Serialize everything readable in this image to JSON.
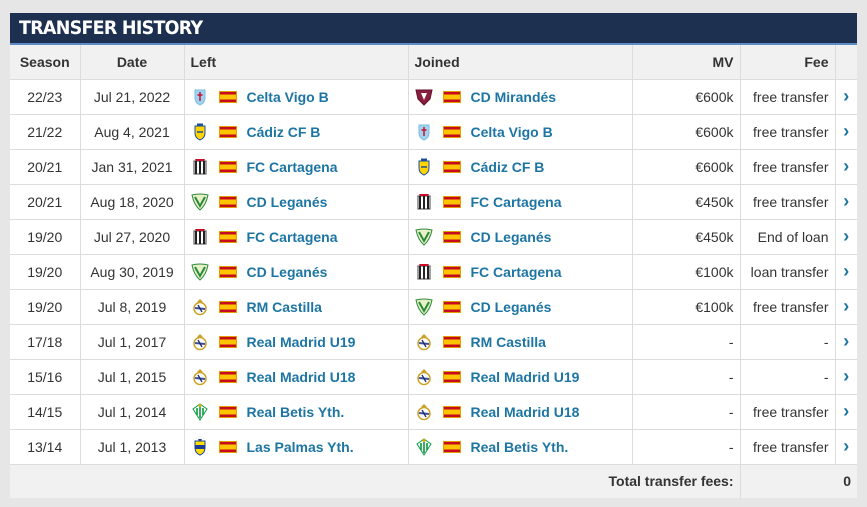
{
  "panel": {
    "title": "Transfer history"
  },
  "headers": {
    "season": "Season",
    "date": "Date",
    "left": "Left",
    "joined": "Joined",
    "mv": "MV",
    "fee": "Fee"
  },
  "rows": [
    {
      "season": "22/23",
      "date": "Jul 21, 2022",
      "left": "Celta Vigo B",
      "left_crest": "celta-crest-icon",
      "joined": "CD Mirandés",
      "joined_crest": "mirandes-crest-icon",
      "mv": "€600k",
      "fee": "free transfer"
    },
    {
      "season": "21/22",
      "date": "Aug 4, 2021",
      "left": "Cádiz CF B",
      "left_crest": "cadiz-crest-icon",
      "joined": "Celta Vigo B",
      "joined_crest": "celta-crest-icon",
      "mv": "€600k",
      "fee": "free transfer"
    },
    {
      "season": "20/21",
      "date": "Jan 31, 2021",
      "left": "FC Cartagena",
      "left_crest": "cartagena-crest-icon",
      "joined": "Cádiz CF B",
      "joined_crest": "cadiz-crest-icon",
      "mv": "€600k",
      "fee": "free transfer"
    },
    {
      "season": "20/21",
      "date": "Aug 18, 2020",
      "left": "CD Leganés",
      "left_crest": "leganes-crest-icon",
      "joined": "FC Cartagena",
      "joined_crest": "cartagena-crest-icon",
      "mv": "€450k",
      "fee": "free transfer"
    },
    {
      "season": "19/20",
      "date": "Jul 27, 2020",
      "left": "FC Cartagena",
      "left_crest": "cartagena-crest-icon",
      "joined": "CD Leganés",
      "joined_crest": "leganes-crest-icon",
      "mv": "€450k",
      "fee": "End of loan"
    },
    {
      "season": "19/20",
      "date": "Aug 30, 2019",
      "left": "CD Leganés",
      "left_crest": "leganes-crest-icon",
      "joined": "FC Cartagena",
      "joined_crest": "cartagena-crest-icon",
      "mv": "€100k",
      "fee": "loan transfer"
    },
    {
      "season": "19/20",
      "date": "Jul 8, 2019",
      "left": "RM Castilla",
      "left_crest": "real-madrid-crest-icon",
      "joined": "CD Leganés",
      "joined_crest": "leganes-crest-icon",
      "mv": "€100k",
      "fee": "free transfer"
    },
    {
      "season": "17/18",
      "date": "Jul 1, 2017",
      "left": "Real Madrid U19",
      "left_crest": "real-madrid-crest-icon",
      "joined": "RM Castilla",
      "joined_crest": "real-madrid-crest-icon",
      "mv": "-",
      "fee": "-"
    },
    {
      "season": "15/16",
      "date": "Jul 1, 2015",
      "left": "Real Madrid U18",
      "left_crest": "real-madrid-crest-icon",
      "joined": "Real Madrid U19",
      "joined_crest": "real-madrid-crest-icon",
      "mv": "-",
      "fee": "-"
    },
    {
      "season": "14/15",
      "date": "Jul 1, 2014",
      "left": "Real Betis Yth.",
      "left_crest": "betis-crest-icon",
      "joined": "Real Madrid U18",
      "joined_crest": "real-madrid-crest-icon",
      "mv": "-",
      "fee": "free transfer"
    },
    {
      "season": "13/14",
      "date": "Jul 1, 2013",
      "left": "Las Palmas Yth.",
      "left_crest": "las-palmas-crest-icon",
      "joined": "Real Betis Yth.",
      "joined_crest": "betis-crest-icon",
      "mv": "-",
      "fee": "free transfer"
    }
  ],
  "footer": {
    "total_label": "Total transfer fees:",
    "total_value": "0"
  },
  "icons": {
    "flag": "spain-flag-icon",
    "arrow": "chevron-right-icon"
  },
  "colors": {
    "header_bg": "#1d3050",
    "link": "#1d75a3",
    "header_accent": "#5d8cc4"
  }
}
